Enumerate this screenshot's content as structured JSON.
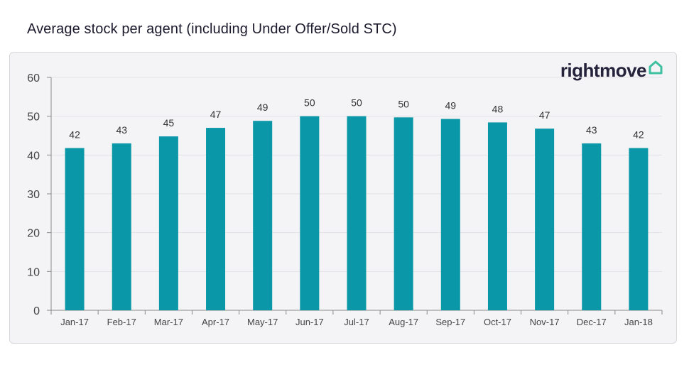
{
  "title": "Average stock per agent (including Under Offer/Sold STC)",
  "logo": {
    "text": "rightmove",
    "icon": "house-outline-icon",
    "icon_color": "#3fc0a0",
    "text_color": "#25233b"
  },
  "colors": {
    "bar": "#0a98a8",
    "grid": "#e2e2e6",
    "axis": "#8a8a8a"
  },
  "chart_data": {
    "type": "bar",
    "title": "Average stock per agent (including Under Offer/Sold STC)",
    "xlabel": "",
    "ylabel": "",
    "categories": [
      "Jan-17",
      "Feb-17",
      "Mar-17",
      "Apr-17",
      "May-17",
      "Jun-17",
      "Jul-17",
      "Aug-17",
      "Sep-17",
      "Oct-17",
      "Nov-17",
      "Dec-17",
      "Jan-18"
    ],
    "values": [
      41.8,
      43,
      44.8,
      47,
      48.8,
      50,
      50,
      49.7,
      49.3,
      48.4,
      46.8,
      43,
      41.8
    ],
    "data_labels": [
      "42",
      "43",
      "45",
      "47",
      "49",
      "50",
      "50",
      "50",
      "49",
      "48",
      "47",
      "43",
      "42"
    ],
    "ylim": [
      0,
      60
    ],
    "yticks": [
      0,
      10,
      20,
      30,
      40,
      50,
      60
    ],
    "grid": true,
    "legend": "none"
  }
}
